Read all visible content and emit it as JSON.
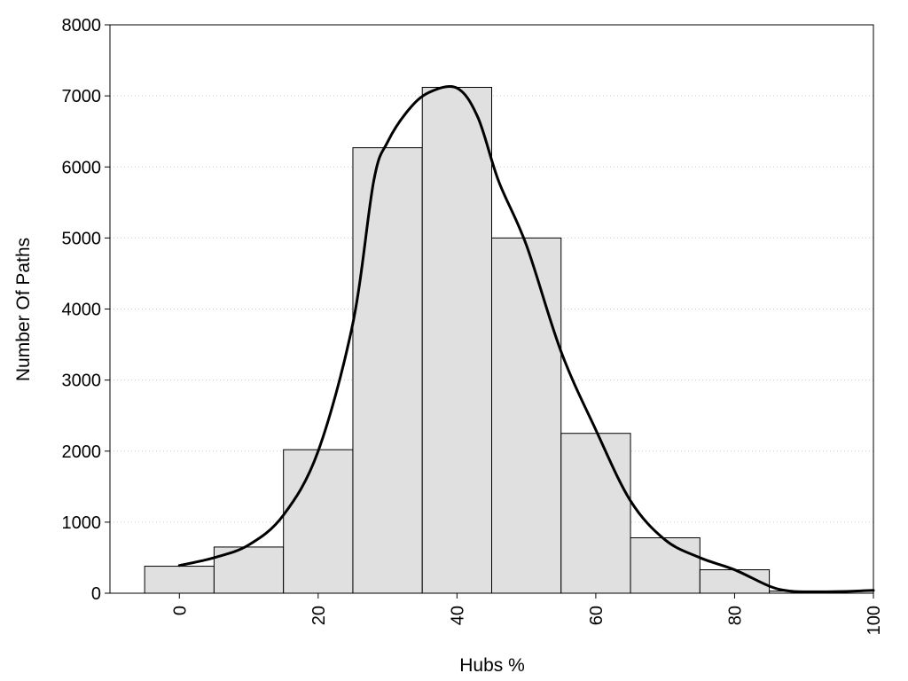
{
  "chart_data": {
    "type": "bar",
    "title": "",
    "xlabel": "Hubs %",
    "ylabel": "Number Of Paths",
    "xlim": [
      -10,
      100
    ],
    "ylim": [
      0,
      8000
    ],
    "x_ticks": [
      0,
      20,
      40,
      60,
      80,
      100
    ],
    "y_ticks": [
      0,
      1000,
      2000,
      3000,
      4000,
      5000,
      6000,
      7000,
      8000
    ],
    "grid": "horizontal dotted",
    "bin_width": 10,
    "bins": [
      {
        "center": 0,
        "value": 380
      },
      {
        "center": 10,
        "value": 650
      },
      {
        "center": 20,
        "value": 2020
      },
      {
        "center": 30,
        "value": 6270
      },
      {
        "center": 40,
        "value": 7120
      },
      {
        "center": 50,
        "value": 5000
      },
      {
        "center": 60,
        "value": 2250
      },
      {
        "center": 70,
        "value": 780
      },
      {
        "center": 80,
        "value": 330
      },
      {
        "center": 90,
        "value": 30
      }
    ],
    "density_curve": [
      {
        "x": 0,
        "y": 390
      },
      {
        "x": 5,
        "y": 500
      },
      {
        "x": 10,
        "y": 680
      },
      {
        "x": 15,
        "y": 1100
      },
      {
        "x": 20,
        "y": 2000
      },
      {
        "x": 25,
        "y": 3800
      },
      {
        "x": 28,
        "y": 5800
      },
      {
        "x": 30,
        "y": 6350
      },
      {
        "x": 33,
        "y": 6800
      },
      {
        "x": 36,
        "y": 7050
      },
      {
        "x": 40,
        "y": 7110
      },
      {
        "x": 43,
        "y": 6700
      },
      {
        "x": 46,
        "y": 5800
      },
      {
        "x": 50,
        "y": 4900
      },
      {
        "x": 55,
        "y": 3400
      },
      {
        "x": 60,
        "y": 2300
      },
      {
        "x": 65,
        "y": 1300
      },
      {
        "x": 70,
        "y": 750
      },
      {
        "x": 75,
        "y": 500
      },
      {
        "x": 80,
        "y": 330
      },
      {
        "x": 85,
        "y": 100
      },
      {
        "x": 88,
        "y": 30
      },
      {
        "x": 92,
        "y": 20
      },
      {
        "x": 96,
        "y": 25
      },
      {
        "x": 100,
        "y": 40
      }
    ],
    "colors": {
      "bar_fill": "#e0e0e0",
      "bar_stroke": "#000000",
      "curve": "#000000",
      "grid": "#c8c8c8"
    }
  }
}
